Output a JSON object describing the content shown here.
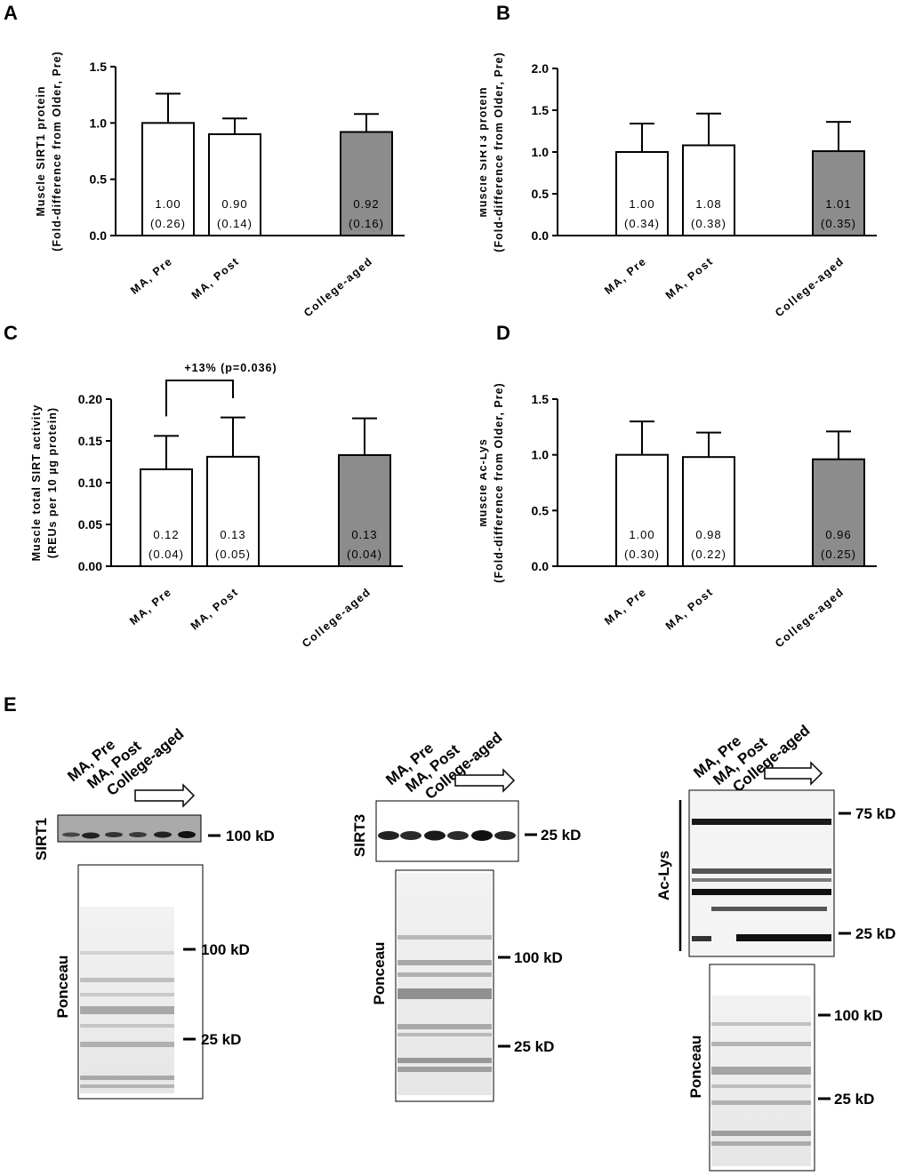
{
  "panels": {
    "a": "A",
    "b": "B",
    "c": "C",
    "d": "D",
    "e": "E"
  },
  "chart_data": [
    {
      "id": "A",
      "type": "bar",
      "title": "",
      "categories": [
        "MA, Pre",
        "MA, Post",
        "College-aged"
      ],
      "values": [
        1.0,
        0.9,
        0.92
      ],
      "errors": [
        0.26,
        0.14,
        0.16
      ],
      "value_labels": [
        "1.00",
        "0.90",
        "0.92"
      ],
      "sd_labels": [
        "(0.26)",
        "(0.14)",
        "(0.16)"
      ],
      "ylabel": [
        "Muscle SIRT1 protein",
        "(Fold-difference from Older, Pre)"
      ],
      "ylim": [
        0,
        1.5
      ],
      "yticks": [
        0.0,
        0.5,
        1.0,
        1.5
      ],
      "ytick_labels": [
        "0.0",
        "0.5",
        "1.0",
        "1.5"
      ],
      "bar_colors": [
        "#ffffff",
        "#ffffff",
        "#8c8c8c"
      ]
    },
    {
      "id": "B",
      "type": "bar",
      "title": "",
      "categories": [
        "MA, Pre",
        "MA, Post",
        "College-aged"
      ],
      "values": [
        1.0,
        1.08,
        1.01
      ],
      "errors": [
        0.34,
        0.38,
        0.35
      ],
      "value_labels": [
        "1.00",
        "1.08",
        "1.01"
      ],
      "sd_labels": [
        "(0.34)",
        "(0.38)",
        "(0.35)"
      ],
      "ylabel": [
        "Muscle SIRT3 protein",
        "(Fold-difference from Older, Pre)"
      ],
      "ylim": [
        0,
        2.0
      ],
      "yticks": [
        0.0,
        0.5,
        1.0,
        1.5,
        2.0
      ],
      "ytick_labels": [
        "0.0",
        "0.5",
        "1.0",
        "1.5",
        "2.0"
      ],
      "bar_colors": [
        "#ffffff",
        "#ffffff",
        "#8c8c8c"
      ]
    },
    {
      "id": "C",
      "type": "bar",
      "title": "",
      "categories": [
        "MA, Pre",
        "MA, Post",
        "College-aged"
      ],
      "values": [
        0.116,
        0.131,
        0.133
      ],
      "errors": [
        0.04,
        0.047,
        0.044
      ],
      "value_labels": [
        "0.12",
        "0.13",
        "0.13"
      ],
      "sd_labels": [
        "(0.04)",
        "(0.05)",
        "(0.04)"
      ],
      "ylabel": [
        "Muscle total SIRT activity",
        "(REUs per 10 µg protein)"
      ],
      "ylim": [
        0,
        0.2
      ],
      "yticks": [
        0.0,
        0.05,
        0.1,
        0.15,
        0.2
      ],
      "ytick_labels": [
        "0.00",
        "0.05",
        "0.10",
        "0.15",
        "0.20"
      ],
      "bar_colors": [
        "#ffffff",
        "#ffffff",
        "#8c8c8c"
      ],
      "annotation": "+13% (p=0.036)"
    },
    {
      "id": "D",
      "type": "bar",
      "title": "",
      "categories": [
        "MA, Pre",
        "MA, Post",
        "College-aged"
      ],
      "values": [
        1.0,
        0.98,
        0.96
      ],
      "errors": [
        0.3,
        0.22,
        0.25
      ],
      "value_labels": [
        "1.00",
        "0.98",
        "0.96"
      ],
      "sd_labels": [
        "(0.30)",
        "(0.22)",
        "(0.25)"
      ],
      "ylabel": [
        "Muscle Ac-Lys",
        "(Fold-difference from Older, Pre)"
      ],
      "ylim": [
        0,
        1.5
      ],
      "yticks": [
        0.0,
        0.5,
        1.0,
        1.5
      ],
      "ytick_labels": [
        "0.0",
        "0.5",
        "1.0",
        "1.5"
      ],
      "bar_colors": [
        "#ffffff",
        "#ffffff",
        "#8c8c8c"
      ]
    }
  ],
  "blots": [
    {
      "lane_labels": [
        "MA, Pre",
        "MA, Post",
        "College-aged"
      ],
      "protein_label": "SIRT1",
      "protein_marker": "100 kD",
      "ponceau_label": "Ponceau",
      "ponceau_markers": [
        "100 kD",
        "25 kD"
      ]
    },
    {
      "lane_labels": [
        "MA, Pre",
        "MA, Post",
        "College-aged"
      ],
      "protein_label": "SIRT3",
      "protein_marker": "25 kD",
      "ponceau_label": "Ponceau",
      "ponceau_markers": [
        "100 kD",
        "25 kD"
      ]
    },
    {
      "lane_labels": [
        "MA, Pre",
        "MA, Post",
        "College-aged"
      ],
      "protein_label": "Ac-Lys",
      "protein_markers": [
        "75 kD",
        "25 kD"
      ],
      "ponceau_label": "Ponceau",
      "ponceau_markers": [
        "100 kD",
        "25 kD"
      ]
    }
  ]
}
